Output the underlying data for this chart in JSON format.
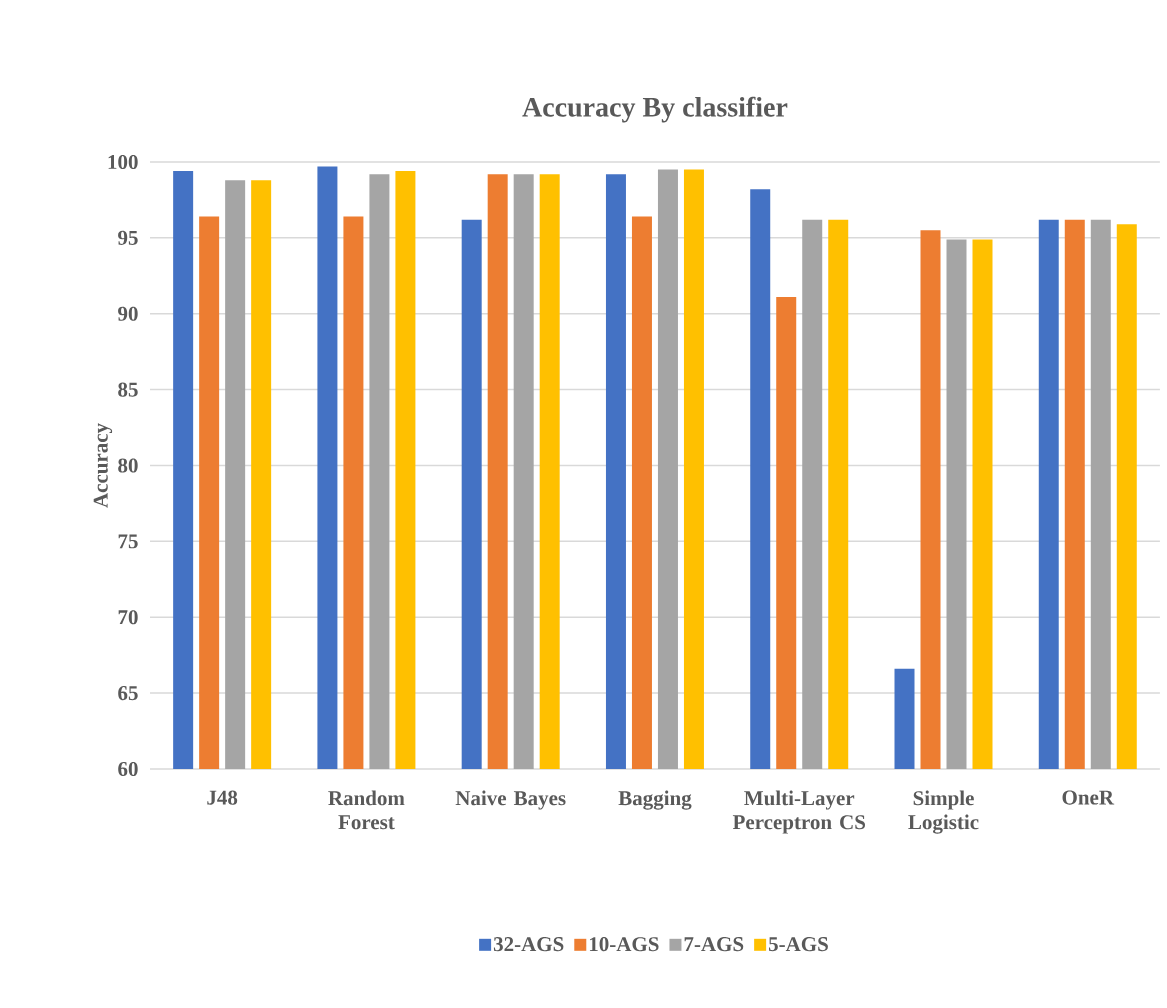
{
  "chart_data": {
    "type": "bar",
    "title": "Accuracy By classifier",
    "ylabel": "Accuracy",
    "categories": [
      "J48",
      "Random Forest",
      "Naive Bayes",
      "Bagging",
      "Multi-Layer Perceptron CS",
      "Simple Logistic",
      "OneR"
    ],
    "series": [
      {
        "name": "32-AGS",
        "color": "#4472c4",
        "values": [
          99.4,
          99.7,
          96.2,
          99.2,
          98.2,
          66.6,
          96.2
        ]
      },
      {
        "name": "10-AGS",
        "color": "#ed7d31",
        "values": [
          96.4,
          96.4,
          99.2,
          96.4,
          91.1,
          95.5,
          96.2
        ]
      },
      {
        "name": "7-AGS",
        "color": "#a5a5a5",
        "values": [
          98.8,
          99.2,
          99.2,
          99.5,
          96.2,
          94.9,
          96.2
        ]
      },
      {
        "name": "5-AGS",
        "color": "#ffc000",
        "values": [
          98.8,
          99.4,
          99.2,
          99.5,
          96.2,
          94.9,
          95.9
        ]
      }
    ],
    "ylim": [
      60,
      100
    ],
    "yticks": [
      60,
      65,
      70,
      75,
      80,
      85,
      90,
      95,
      100
    ],
    "grid": "y",
    "legend": "bottom"
  }
}
